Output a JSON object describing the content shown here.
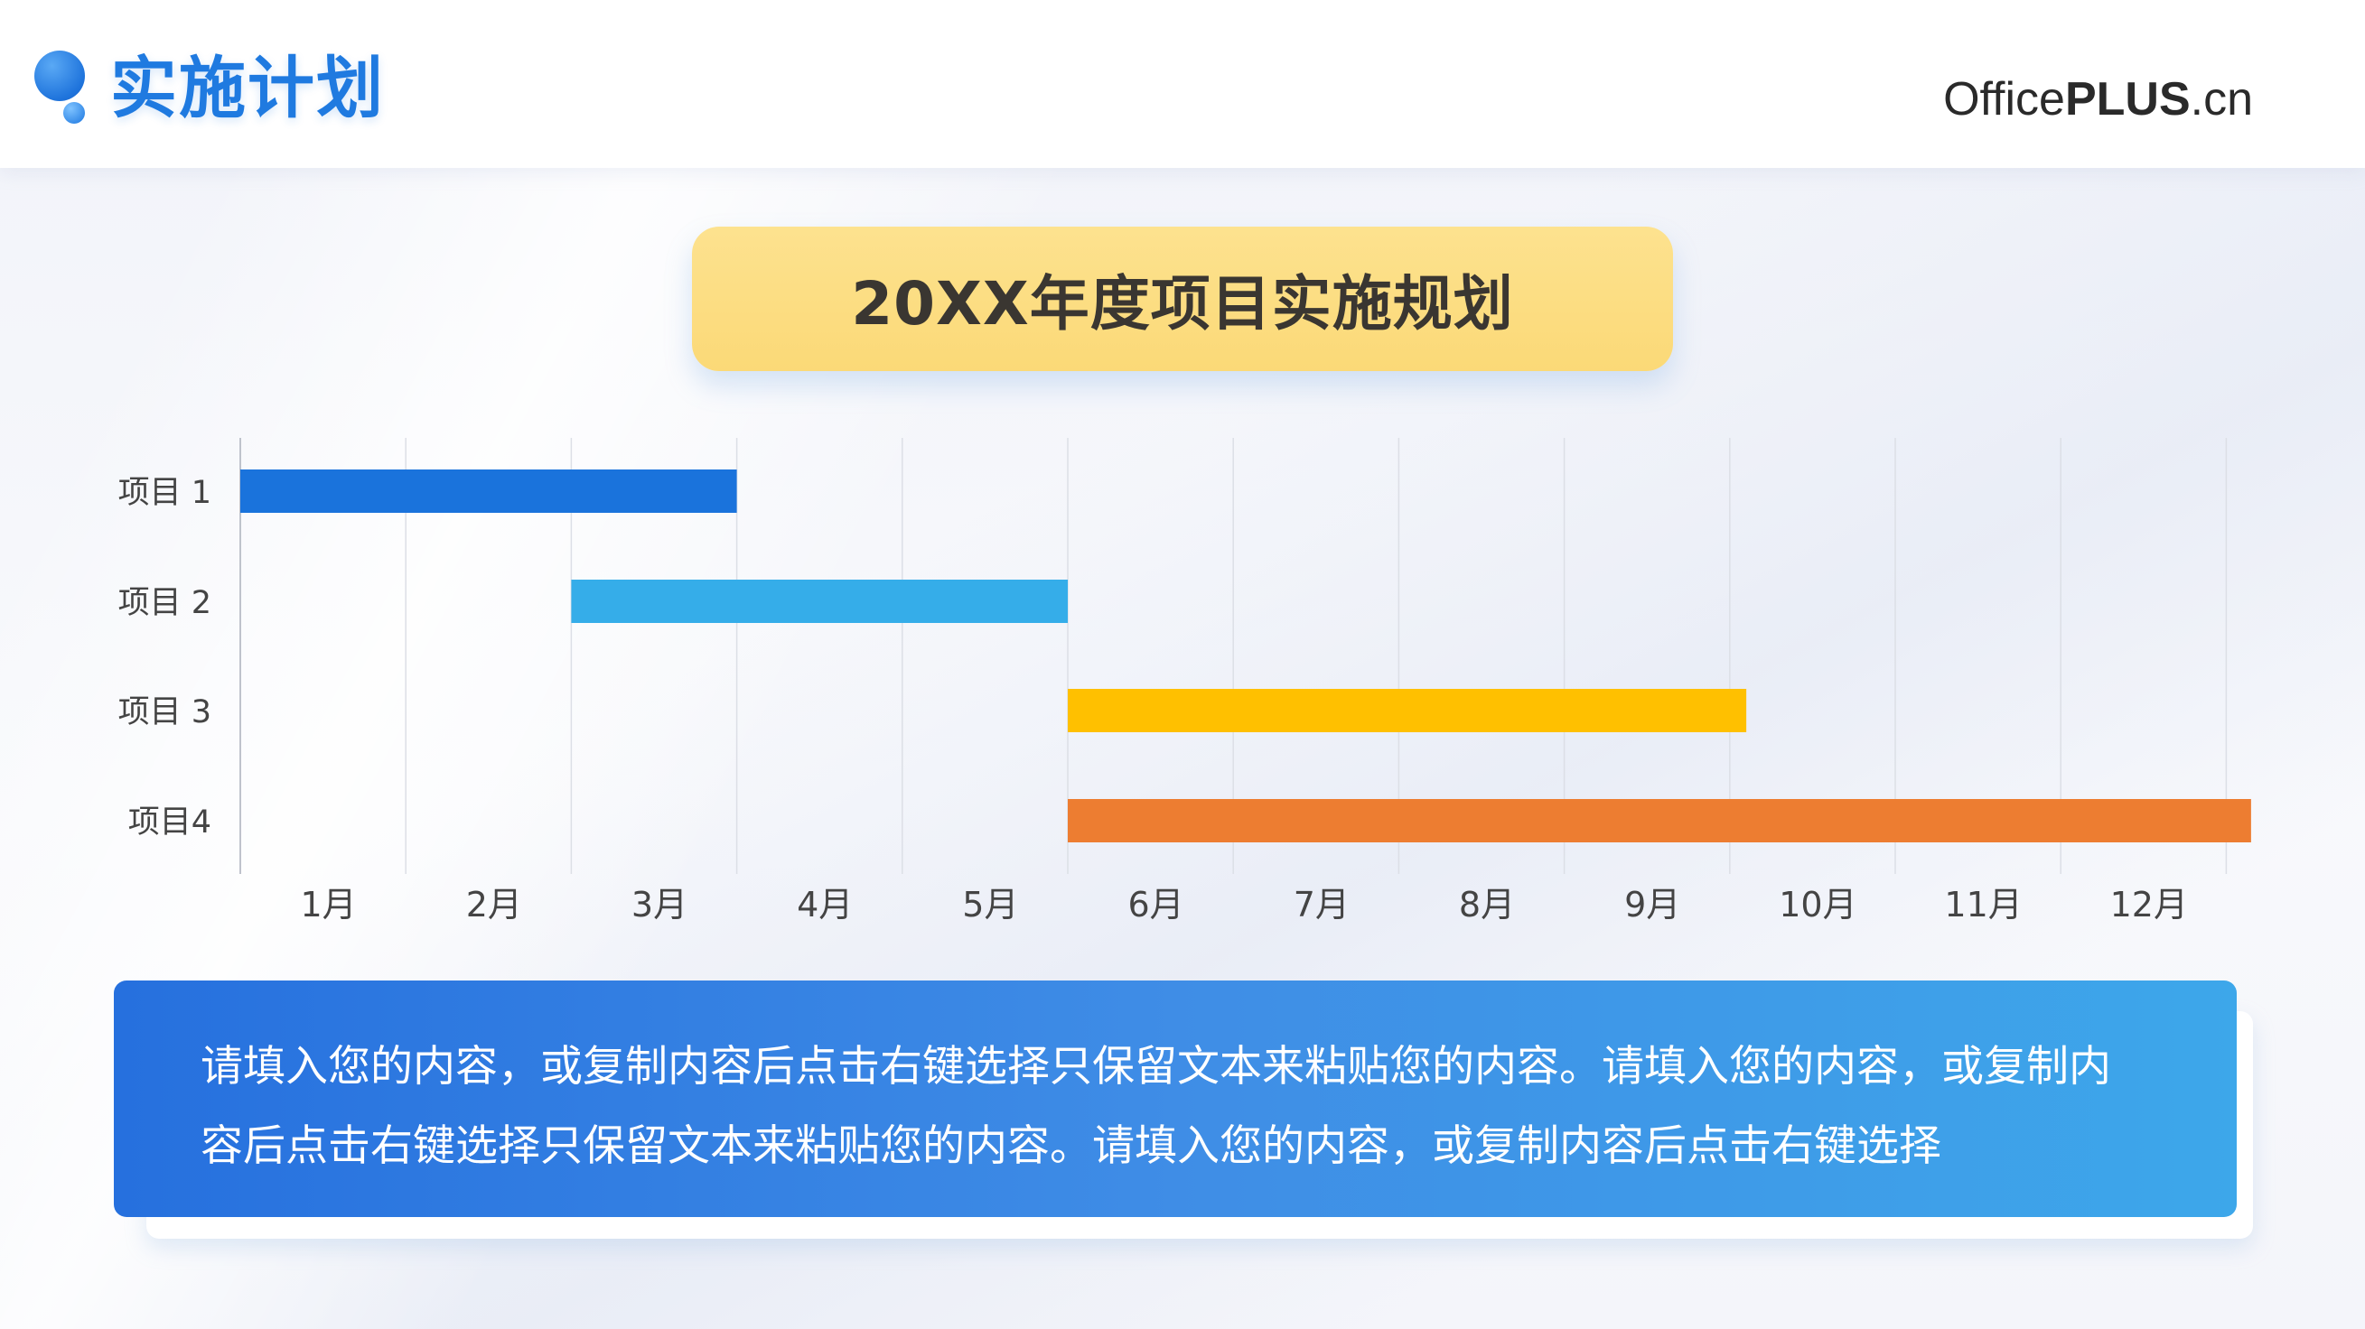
{
  "header": {
    "page_title": "实施计划",
    "logo_prefix": "Office",
    "logo_bold": "PLUS",
    "logo_suffix": ".cn"
  },
  "title_box": {
    "text": "20XX年度项目实施规划"
  },
  "description": {
    "text": "请填入您的内容，或复制内容后点击右键选择只保留文本来粘贴您的内容。请填入您的内容，或复制内容后点击右键选择只保留文本来粘贴您的内容。请填入您的内容，或复制内容后点击右键选择"
  },
  "colors": {
    "accent_blue": "#1f7ae0",
    "title_box_yellow": "#fcdc80",
    "bar_1": "#1a73dc",
    "bar_2": "#35ade9",
    "bar_3": "#ffc000",
    "bar_4": "#ed7d31"
  },
  "chart_data": {
    "type": "bar",
    "orientation": "horizontal-gantt",
    "title": "",
    "xlabel": "",
    "ylabel": "",
    "x_ticks": [
      "1月",
      "2月",
      "3月",
      "4月",
      "5月",
      "6月",
      "7月",
      "8月",
      "9月",
      "10月",
      "11月",
      "12月"
    ],
    "xlim": [
      0,
      12
    ],
    "grid": true,
    "legend": "none",
    "tasks": [
      {
        "label": "项目 1",
        "start": 0,
        "end": 3.0,
        "color": "#1a73dc"
      },
      {
        "label": "项目 2",
        "start": 2.0,
        "end": 5.0,
        "color": "#35ade9"
      },
      {
        "label": "项目 3",
        "start": 5.0,
        "end": 9.1,
        "color": "#ffc000"
      },
      {
        "label": "项目4",
        "start": 5.0,
        "end": 12.15,
        "color": "#ed7d31"
      }
    ]
  }
}
